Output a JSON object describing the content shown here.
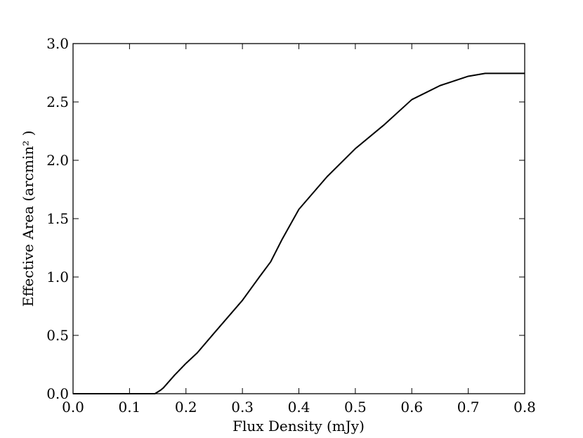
{
  "chart_data": {
    "type": "line",
    "xlabel": "Flux Density (mJy)",
    "ylabel": "Effective Area (arcmin² )",
    "x": [
      0.0,
      0.145,
      0.155,
      0.16,
      0.18,
      0.2,
      0.22,
      0.25,
      0.3,
      0.33,
      0.35,
      0.37,
      0.4,
      0.45,
      0.5,
      0.55,
      0.6,
      0.65,
      0.7,
      0.73,
      0.8
    ],
    "values": [
      0.0,
      0.0,
      0.03,
      0.05,
      0.16,
      0.26,
      0.35,
      0.52,
      0.8,
      1.0,
      1.13,
      1.32,
      1.58,
      1.86,
      2.1,
      2.3,
      2.52,
      2.64,
      2.72,
      2.745,
      2.745
    ],
    "color": "#000000",
    "xlim": [
      0.0,
      0.8
    ],
    "xticks": [
      {
        "value": 0.0,
        "label": "0.0"
      },
      0.1,
      0.2,
      0.3,
      0.4,
      0.5,
      0.6,
      0.7,
      0.8
    ],
    "ylim": [
      0.0,
      3.0
    ],
    "yticks": [
      {
        "value": 0.0,
        "label": "0.0"
      },
      0.5,
      {
        "value": 1.0,
        "label": "1.0"
      },
      1.5,
      {
        "value": 2.0,
        "label": "2.0"
      },
      2.5,
      {
        "value": 3.0,
        "label": "3.0"
      }
    ]
  }
}
